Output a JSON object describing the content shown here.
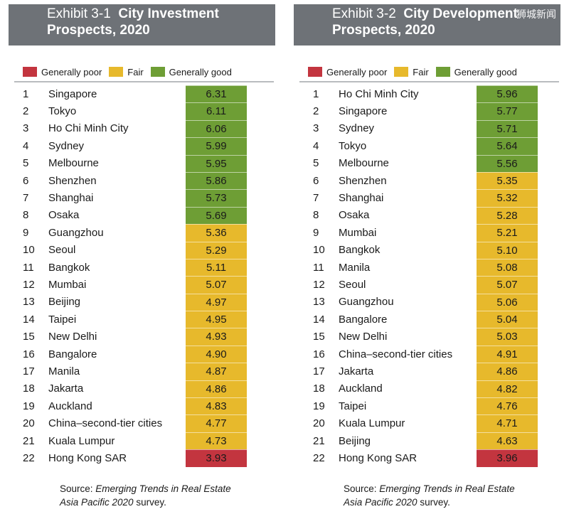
{
  "colors": {
    "poor": "#c3353f",
    "fair": "#e7b92c",
    "good": "#6e9e35",
    "banner": "#6e7277"
  },
  "watermark": "狮城新闻",
  "legend": {
    "poor": "Generally poor",
    "fair": "Fair",
    "good": "Generally good"
  },
  "left": {
    "exhibit": "Exhibit 3-1",
    "title_line1": "City Investment",
    "title_line2": "Prospects, 2020",
    "rows": [
      {
        "rank": "1",
        "city": "Singapore",
        "score": "6.31",
        "level": "good"
      },
      {
        "rank": "2",
        "city": "Tokyo",
        "score": "6.11",
        "level": "good"
      },
      {
        "rank": "3",
        "city": "Ho Chi Minh City",
        "score": "6.06",
        "level": "good"
      },
      {
        "rank": "4",
        "city": "Sydney",
        "score": "5.99",
        "level": "good"
      },
      {
        "rank": "5",
        "city": "Melbourne",
        "score": "5.95",
        "level": "good"
      },
      {
        "rank": "6",
        "city": "Shenzhen",
        "score": "5.86",
        "level": "good"
      },
      {
        "rank": "7",
        "city": "Shanghai",
        "score": "5.73",
        "level": "good"
      },
      {
        "rank": "8",
        "city": "Osaka",
        "score": "5.69",
        "level": "good"
      },
      {
        "rank": "9",
        "city": "Guangzhou",
        "score": "5.36",
        "level": "fair"
      },
      {
        "rank": "10",
        "city": "Seoul",
        "score": "5.29",
        "level": "fair"
      },
      {
        "rank": "11",
        "city": "Bangkok",
        "score": "5.11",
        "level": "fair"
      },
      {
        "rank": "12",
        "city": "Mumbai",
        "score": "5.07",
        "level": "fair"
      },
      {
        "rank": "13",
        "city": "Beijing",
        "score": "4.97",
        "level": "fair"
      },
      {
        "rank": "14",
        "city": "Taipei",
        "score": "4.95",
        "level": "fair"
      },
      {
        "rank": "15",
        "city": "New Delhi",
        "score": "4.93",
        "level": "fair"
      },
      {
        "rank": "16",
        "city": "Bangalore",
        "score": "4.90",
        "level": "fair"
      },
      {
        "rank": "17",
        "city": "Manila",
        "score": "4.87",
        "level": "fair"
      },
      {
        "rank": "18",
        "city": "Jakarta",
        "score": "4.86",
        "level": "fair"
      },
      {
        "rank": "19",
        "city": "Auckland",
        "score": "4.83",
        "level": "fair"
      },
      {
        "rank": "20",
        "city": "China–second-tier cities",
        "score": "4.77",
        "level": "fair"
      },
      {
        "rank": "21",
        "city": "Kuala Lumpur",
        "score": "4.73",
        "level": "fair"
      },
      {
        "rank": "22",
        "city": "Hong Kong SAR",
        "score": "3.93",
        "level": "poor"
      }
    ],
    "source_prefix": "Source: ",
    "source_italic_1": "Emerging Trends in Real Estate",
    "source_italic_2": "Asia Pacific 2020",
    "source_suffix": " survey."
  },
  "right": {
    "exhibit": "Exhibit 3-2",
    "title_line1": "City Development",
    "title_line2": "Prospects, 2020",
    "rows": [
      {
        "rank": "1",
        "city": "Ho Chi Minh City",
        "score": "5.96",
        "level": "good"
      },
      {
        "rank": "2",
        "city": "Singapore",
        "score": "5.77",
        "level": "good"
      },
      {
        "rank": "3",
        "city": "Sydney",
        "score": "5.71",
        "level": "good"
      },
      {
        "rank": "4",
        "city": "Tokyo",
        "score": "5.64",
        "level": "good"
      },
      {
        "rank": "5",
        "city": "Melbourne",
        "score": "5.56",
        "level": "good"
      },
      {
        "rank": "6",
        "city": "Shenzhen",
        "score": "5.35",
        "level": "fair"
      },
      {
        "rank": "7",
        "city": "Shanghai",
        "score": "5.32",
        "level": "fair"
      },
      {
        "rank": "8",
        "city": "Osaka",
        "score": "5.28",
        "level": "fair"
      },
      {
        "rank": "9",
        "city": "Mumbai",
        "score": "5.21",
        "level": "fair"
      },
      {
        "rank": "10",
        "city": "Bangkok",
        "score": "5.10",
        "level": "fair"
      },
      {
        "rank": "11",
        "city": "Manila",
        "score": "5.08",
        "level": "fair"
      },
      {
        "rank": "12",
        "city": "Seoul",
        "score": "5.07",
        "level": "fair"
      },
      {
        "rank": "13",
        "city": "Guangzhou",
        "score": "5.06",
        "level": "fair"
      },
      {
        "rank": "14",
        "city": "Bangalore",
        "score": "5.04",
        "level": "fair"
      },
      {
        "rank": "15",
        "city": "New Delhi",
        "score": "5.03",
        "level": "fair"
      },
      {
        "rank": "16",
        "city": "China–second-tier cities",
        "score": "4.91",
        "level": "fair"
      },
      {
        "rank": "17",
        "city": "Jakarta",
        "score": "4.86",
        "level": "fair"
      },
      {
        "rank": "18",
        "city": "Auckland",
        "score": "4.82",
        "level": "fair"
      },
      {
        "rank": "19",
        "city": "Taipei",
        "score": "4.76",
        "level": "fair"
      },
      {
        "rank": "20",
        "city": "Kuala Lumpur",
        "score": "4.71",
        "level": "fair"
      },
      {
        "rank": "21",
        "city": "Beijing",
        "score": "4.63",
        "level": "fair"
      },
      {
        "rank": "22",
        "city": "Hong Kong SAR",
        "score": "3.96",
        "level": "poor"
      }
    ],
    "source_prefix": "Source: ",
    "source_italic_1": "Emerging Trends in Real Estate",
    "source_italic_2": "Asia Pacific 2020",
    "source_suffix": " survey."
  }
}
